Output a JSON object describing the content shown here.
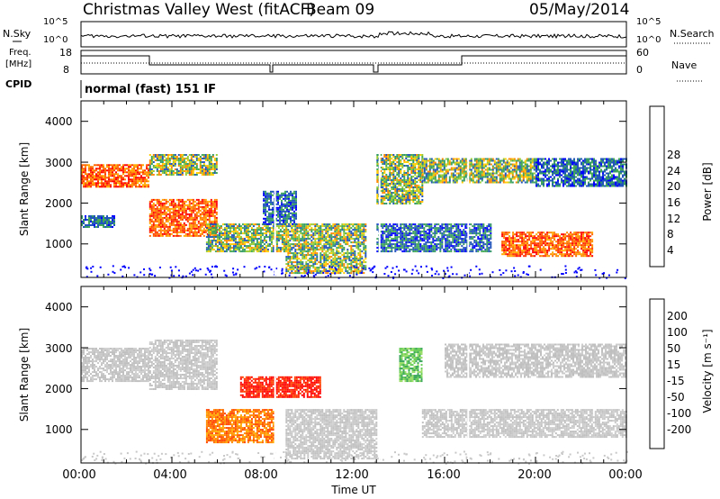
{
  "header": {
    "station": "Christmas Valley West (fitACF)",
    "beam": "Beam 09",
    "date": "05/May/2014"
  },
  "noise_panel": {
    "left_label": "N.Sky",
    "right_label": "N.Search",
    "y_ticks_left": [
      "10^5",
      "10^0"
    ],
    "y_ticks_right": [
      "10^5",
      "10^0"
    ]
  },
  "freq_panel": {
    "left_label_line1": "Freq.",
    "left_label_line2": "[MHz]",
    "right_label": "Nave",
    "y_ticks_left": [
      "18",
      "8"
    ],
    "y_ticks_right": [
      "60",
      "0"
    ]
  },
  "cpid": {
    "label": "CPID",
    "value": "normal (fast) 151 IF"
  },
  "chart_data": [
    {
      "type": "heatmap",
      "name": "power",
      "xlabel": "",
      "ylabel": "Slant Range [km]",
      "x_ticks": [
        "00:00",
        "04:00",
        "08:00",
        "12:00",
        "16:00",
        "20:00",
        "00:00"
      ],
      "y_ticks": [
        "1000",
        "2000",
        "3000",
        "4000"
      ],
      "xlim_hours": [
        0,
        24
      ],
      "ylim_km": [
        180,
        4500
      ],
      "colorbar": {
        "label": "Power [dB]",
        "tick_labels": [
          "4",
          "8",
          "12",
          "16",
          "20",
          "24",
          "28"
        ],
        "colors": [
          "#0000ff",
          "#2255bb",
          "#339966",
          "#44aa55",
          "#99cc33",
          "#ffcc00",
          "#ff8800",
          "#ff4400",
          "#ff0000"
        ]
      },
      "echo_bands": [
        {
          "t0": 0.0,
          "t1": 3.0,
          "r0": 2400,
          "r1": 2950,
          "level": "high"
        },
        {
          "t0": 0.0,
          "t1": 1.5,
          "r0": 1400,
          "r1": 1700,
          "level": "low"
        },
        {
          "t0": 3.0,
          "t1": 6.0,
          "r0": 1200,
          "r1": 2100,
          "level": "high"
        },
        {
          "t0": 3.0,
          "t1": 6.0,
          "r0": 2700,
          "r1": 3200,
          "level": "mid"
        },
        {
          "t0": 5.5,
          "t1": 9.0,
          "r0": 800,
          "r1": 1500,
          "level": "mid"
        },
        {
          "t0": 9.0,
          "t1": 12.5,
          "r0": 300,
          "r1": 1500,
          "level": "mid"
        },
        {
          "t0": 8.0,
          "t1": 9.5,
          "r0": 1500,
          "r1": 2300,
          "level": "low"
        },
        {
          "t0": 13.0,
          "t1": 15.0,
          "r0": 2000,
          "r1": 3200,
          "level": "mid"
        },
        {
          "t0": 13.0,
          "t1": 18.0,
          "r0": 800,
          "r1": 1500,
          "level": "low"
        },
        {
          "t0": 15.0,
          "t1": 20.0,
          "r0": 2500,
          "r1": 3100,
          "level": "mid"
        },
        {
          "t0": 18.5,
          "t1": 22.5,
          "r0": 700,
          "r1": 1300,
          "level": "high"
        },
        {
          "t0": 20.0,
          "t1": 24.0,
          "r0": 2400,
          "r1": 3100,
          "level": "low"
        }
      ]
    },
    {
      "type": "heatmap",
      "name": "velocity",
      "xlabel": "Time UT",
      "ylabel": "Slant Range [km]",
      "x_ticks": [
        "00:00",
        "04:00",
        "08:00",
        "12:00",
        "16:00",
        "20:00",
        "00:00"
      ],
      "y_ticks": [
        "1000",
        "2000",
        "3000",
        "4000"
      ],
      "xlim_hours": [
        0,
        24
      ],
      "ylim_km": [
        180,
        4500
      ],
      "colorbar": {
        "label": "Velocity [m s⁻¹]",
        "tick_labels": [
          "200",
          "100",
          "50",
          "15",
          "-15",
          "-50",
          "-100",
          "-200"
        ],
        "colors": [
          "#1a2aa0",
          "#2266cc",
          "#3aa65a",
          "#99dd66",
          "#c8c8c8",
          "#ffcc00",
          "#ff8800",
          "#ff4400",
          "#ff0000"
        ]
      },
      "echo_bands": [
        {
          "t0": 0.0,
          "t1": 3.0,
          "r0": 2200,
          "r1": 3000,
          "level": "ground"
        },
        {
          "t0": 3.0,
          "t1": 6.0,
          "r0": 2000,
          "r1": 3200,
          "level": "ground"
        },
        {
          "t0": 5.5,
          "t1": 8.5,
          "r0": 700,
          "r1": 1500,
          "level": "neg_mid"
        },
        {
          "t0": 7.0,
          "t1": 10.5,
          "r0": 1800,
          "r1": 2300,
          "level": "neg_high"
        },
        {
          "t0": 9.0,
          "t1": 13.0,
          "r0": 300,
          "r1": 1500,
          "level": "ground"
        },
        {
          "t0": 14.0,
          "t1": 15.0,
          "r0": 2200,
          "r1": 3000,
          "level": "pos_low"
        },
        {
          "t0": 15.0,
          "t1": 24.0,
          "r0": 800,
          "r1": 1500,
          "level": "ground"
        },
        {
          "t0": 16.0,
          "t1": 24.0,
          "r0": 2300,
          "r1": 3100,
          "level": "ground"
        }
      ]
    }
  ]
}
